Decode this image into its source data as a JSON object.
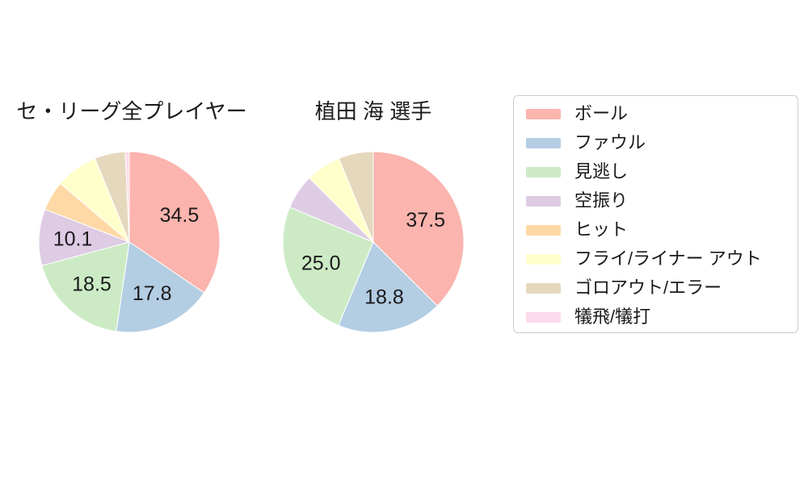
{
  "chart_data": {
    "type": "pie",
    "categories": [
      "ボール",
      "ファウル",
      "見逃し",
      "空振り",
      "ヒット",
      "フライ/ライナー アウト",
      "ゴロアウト/エラー",
      "犠飛/犠打"
    ],
    "colors": [
      "#fbb4ae",
      "#b3cde3",
      "#ccebc5",
      "#decbe4",
      "#fed9a6",
      "#ffffcc",
      "#e5d8bd",
      "#fddaec"
    ],
    "series": [
      {
        "name": "セ・リーグ全プレイヤー",
        "values": [
          34.5,
          17.8,
          18.5,
          10.1,
          5.3,
          7.6,
          5.5,
          0.7
        ]
      },
      {
        "name": "植田 海  選手",
        "values": [
          37.5,
          18.8,
          25.0,
          6.2,
          0,
          6.3,
          6.2,
          0
        ]
      }
    ],
    "visible_slice_labels": {
      "left": [
        "34.5",
        "17.8",
        "18.5",
        "10.1"
      ],
      "right": [
        "37.5",
        "18.8",
        "25.0"
      ]
    },
    "start_angle_deg": 90,
    "direction": "clockwise",
    "label_threshold_pct": 10,
    "label_decimals": 1,
    "legend_position": "right",
    "label_color": "#1a1a1a",
    "slice_edge_color": "#ffffff",
    "legend_border_color": "#cccccc",
    "background_color": "#ffffff"
  }
}
